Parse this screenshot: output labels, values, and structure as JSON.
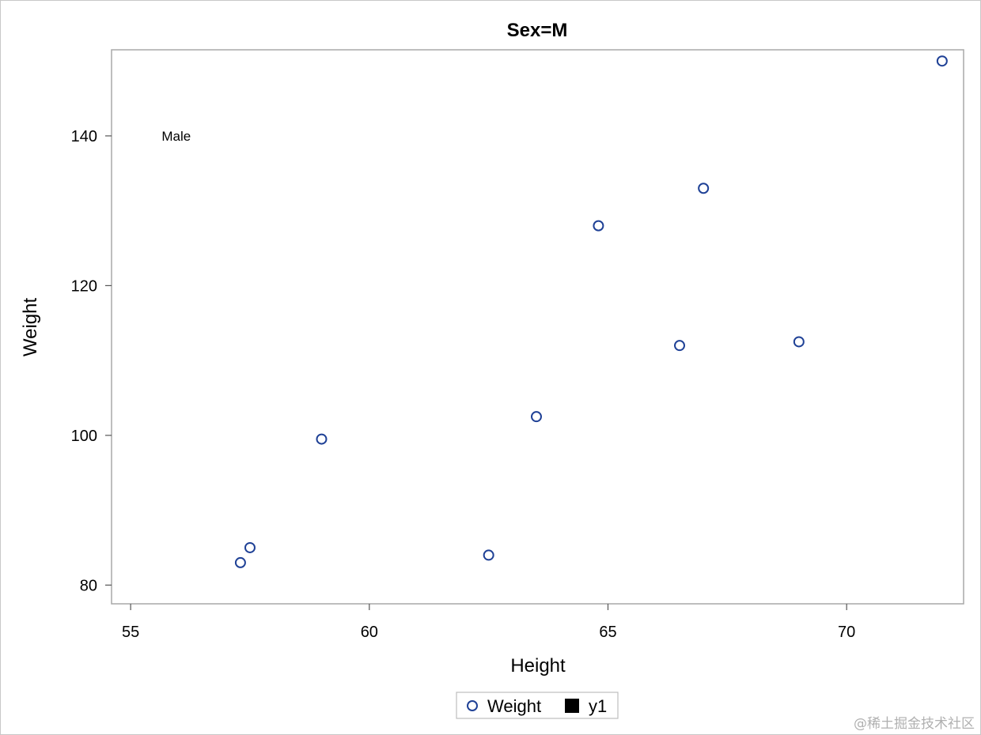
{
  "chart_data": {
    "type": "scatter",
    "title": "Sex=M",
    "xlabel": "Height",
    "ylabel": "Weight",
    "xlim": [
      54.6,
      72.45
    ],
    "ylim": [
      77.5,
      151.5
    ],
    "xticks": [
      55,
      60,
      65,
      70
    ],
    "yticks": [
      80,
      100,
      120,
      140
    ],
    "grid": false,
    "legend_position": "bottom-center",
    "series": [
      {
        "name": "Weight",
        "marker": "circle-open",
        "color": "#1f4196",
        "points": [
          {
            "x": 57.3,
            "y": 83.0
          },
          {
            "x": 57.5,
            "y": 85.0
          },
          {
            "x": 59.0,
            "y": 99.5
          },
          {
            "x": 62.5,
            "y": 84.0
          },
          {
            "x": 63.5,
            "y": 102.5
          },
          {
            "x": 64.8,
            "y": 128.0
          },
          {
            "x": 66.5,
            "y": 112.0
          },
          {
            "x": 67.0,
            "y": 133.0
          },
          {
            "x": 69.0,
            "y": 112.5
          },
          {
            "x": 72.0,
            "y": 150.0
          }
        ]
      },
      {
        "name": "y1",
        "marker": "square-filled",
        "color": "#000000",
        "points": []
      }
    ],
    "annotations": [
      {
        "text": "Male",
        "x": 55.65,
        "y": 140
      }
    ]
  },
  "watermark": "@稀土掘金技术社区"
}
